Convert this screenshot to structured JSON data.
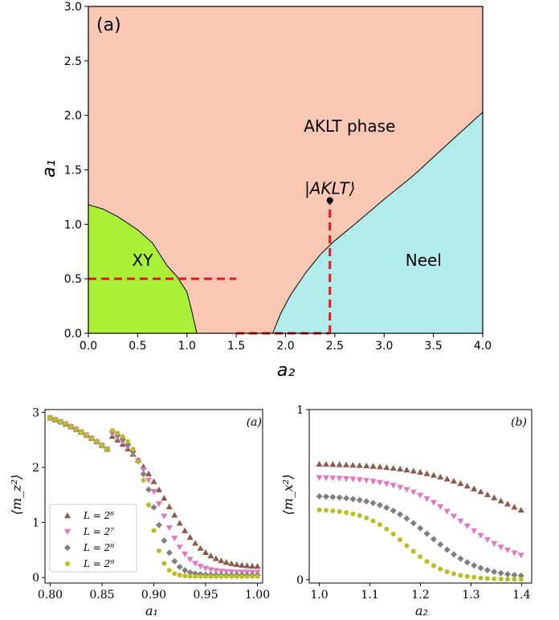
{
  "chart_data": [
    {
      "type": "area",
      "panel_label": "(a)",
      "xlabel": "a₂",
      "ylabel": "a₁",
      "xlim": [
        0,
        4
      ],
      "ylim": [
        0,
        3
      ],
      "xticks": [
        "0.0",
        "0.5",
        "1.0",
        "1.5",
        "2.0",
        "2.5",
        "3.0",
        "3.5",
        "4.0"
      ],
      "yticks": [
        "0.0",
        "0.5",
        "1.0",
        "1.5",
        "2.0",
        "2.5",
        "3.0"
      ],
      "regions": [
        {
          "label": "AKLT phase",
          "color": "#fcc8b4",
          "label_pos": [
            2.65,
            1.85
          ]
        },
        {
          "label": "XY",
          "color": "#aaf23a",
          "label_pos": [
            0.55,
            0.62
          ]
        },
        {
          "label": "Neel",
          "color": "#b2ecec",
          "label_pos": [
            3.4,
            0.62
          ]
        }
      ],
      "xy_boundary": [
        [
          0,
          1.18
        ],
        [
          0.15,
          1.14
        ],
        [
          0.3,
          1.07
        ],
        [
          0.5,
          0.95
        ],
        [
          0.65,
          0.83
        ],
        [
          0.8,
          0.62
        ],
        [
          0.9,
          0.52
        ],
        [
          1.0,
          0.38
        ],
        [
          1.05,
          0.2
        ],
        [
          1.1,
          0.0
        ]
      ],
      "neel_boundary": [
        [
          1.87,
          0.0
        ],
        [
          1.95,
          0.18
        ],
        [
          2.05,
          0.35
        ],
        [
          2.2,
          0.55
        ],
        [
          2.35,
          0.72
        ],
        [
          2.5,
          0.85
        ],
        [
          2.7,
          1.0
        ],
        [
          3.0,
          1.23
        ],
        [
          3.3,
          1.45
        ],
        [
          3.6,
          1.7
        ],
        [
          4.0,
          2.03
        ]
      ],
      "aklt_point": {
        "label": "|AKLT⟩",
        "x": 2.45,
        "y": 1.22
      },
      "dashed_lines": [
        [
          [
            0,
            0.5
          ],
          [
            1.5,
            0.5
          ]
        ],
        [
          [
            1.5,
            0.0
          ],
          [
            2.45,
            0.0
          ]
        ],
        [
          [
            2.45,
            0.0
          ],
          [
            2.45,
            1.22
          ]
        ]
      ],
      "dash_color": "#e8141e"
    },
    {
      "type": "scatter",
      "panel_label": "(a)",
      "xlabel": "a₁",
      "ylabel": "⟨m_z²⟩",
      "xlim": [
        0.795,
        1.005
      ],
      "ylim": [
        -0.1,
        3.05
      ],
      "xticks": [
        "0.80",
        "0.85",
        "0.90",
        "0.95",
        "1.00"
      ],
      "yticks": [
        "0",
        "1",
        "2",
        "3"
      ],
      "legend": "lower-left",
      "series": [
        {
          "name": "L = 2⁶",
          "marker": "triangle-up",
          "color": "#8b5a4b",
          "L": 64
        },
        {
          "name": "L = 2⁷",
          "marker": "triangle-down",
          "color": "#e377c2",
          "L": 128
        },
        {
          "name": "L = 2⁸",
          "marker": "diamond",
          "color": "#7f7f7f",
          "L": 256
        },
        {
          "name": "L = 2⁹",
          "marker": "circle",
          "color": "#bcbd22",
          "L": 512
        }
      ],
      "x_start": 0.8,
      "x_step": 0.005,
      "x_count": 41
    },
    {
      "type": "scatter",
      "panel_label": "(b)",
      "xlabel": "a₂",
      "ylabel": "⟨m_x²⟩",
      "xlim": [
        0.98,
        1.42
      ],
      "ylim": [
        -0.02,
        1.0
      ],
      "xticks": [
        "1.0",
        "1.1",
        "1.2",
        "1.3",
        "1.4"
      ],
      "yticks": [
        "0",
        "1"
      ],
      "series": [
        {
          "name": "L = 2⁶",
          "marker": "triangle-up",
          "color": "#8b5a4b",
          "y_high": 0.68,
          "y_low": 0.24,
          "mid": 1.36,
          "width": 0.08
        },
        {
          "name": "L = 2⁷",
          "marker": "triangle-down",
          "color": "#e377c2",
          "y_high": 0.6,
          "y_low": 0.08,
          "mid": 1.28,
          "width": 0.06
        },
        {
          "name": "L = 2⁸",
          "marker": "diamond",
          "color": "#7f7f7f",
          "y_high": 0.49,
          "y_low": 0.01,
          "mid": 1.22,
          "width": 0.05
        },
        {
          "name": "L = 2⁹",
          "marker": "circle",
          "color": "#bcbd22",
          "y_high": 0.41,
          "y_low": 0.0,
          "mid": 1.17,
          "width": 0.04
        }
      ],
      "x_start": 1.0,
      "x_step": 0.0133,
      "x_count": 31
    }
  ]
}
